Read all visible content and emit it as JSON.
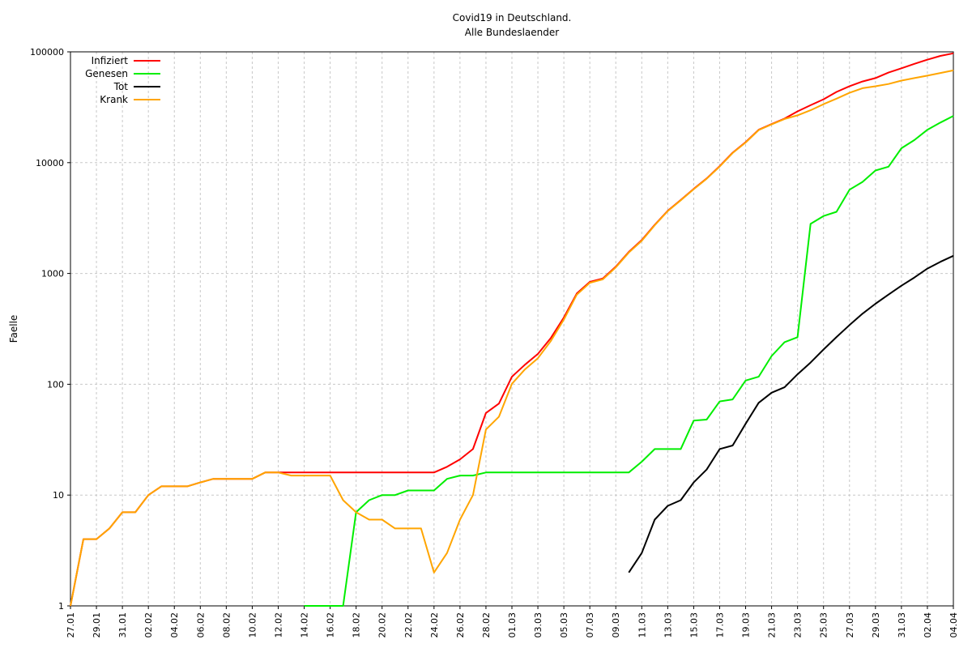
{
  "chart_data": {
    "type": "line",
    "title": "Covid19 in Deutschland.",
    "subtitle": "Alle Bundeslaender",
    "ylabel": "Faelle",
    "xlabel": "",
    "yscale": "log",
    "ylim": [
      1,
      100000
    ],
    "y_ticks": [
      "1",
      "10",
      "100",
      "1000",
      "10000",
      "100000"
    ],
    "grid": true,
    "legend_position": "top-left",
    "x_ticks": [
      "27.01",
      "29.01",
      "31.01",
      "02.02",
      "04.02",
      "06.02",
      "08.02",
      "10.02",
      "12.02",
      "14.02",
      "16.02",
      "18.02",
      "20.02",
      "22.02",
      "24.02",
      "26.02",
      "28.02",
      "01.03",
      "03.03",
      "05.03",
      "07.03",
      "09.03",
      "11.03",
      "13.03",
      "15.03",
      "17.03",
      "19.03",
      "21.03",
      "23.03",
      "25.03",
      "27.03",
      "29.03",
      "31.03",
      "02.04",
      "04.04"
    ],
    "x": [
      "27.01",
      "28.01",
      "29.01",
      "30.01",
      "31.01",
      "01.02",
      "02.02",
      "03.02",
      "04.02",
      "05.02",
      "06.02",
      "07.02",
      "08.02",
      "09.02",
      "10.02",
      "11.02",
      "12.02",
      "13.02",
      "14.02",
      "15.02",
      "16.02",
      "17.02",
      "18.02",
      "19.02",
      "20.02",
      "21.02",
      "22.02",
      "23.02",
      "24.02",
      "25.02",
      "26.02",
      "27.02",
      "28.02",
      "29.02",
      "01.03",
      "02.03",
      "03.03",
      "04.03",
      "05.03",
      "06.03",
      "07.03",
      "08.03",
      "09.03",
      "10.03",
      "11.03",
      "12.03",
      "13.03",
      "14.03",
      "15.03",
      "16.03",
      "17.03",
      "18.03",
      "19.03",
      "20.03",
      "21.03",
      "22.03",
      "23.03",
      "24.03",
      "25.03",
      "26.03",
      "27.03",
      "28.03",
      "29.03",
      "30.03",
      "31.03",
      "01.04",
      "02.04",
      "03.04",
      "04.04"
    ],
    "series": [
      {
        "name": "Infiziert",
        "color": "#ff0000",
        "values": [
          1,
          4,
          4,
          5,
          7,
          7,
          10,
          12,
          12,
          12,
          13,
          14,
          14,
          14,
          14,
          16,
          16,
          16,
          16,
          16,
          16,
          16,
          16,
          16,
          16,
          16,
          16,
          16,
          16,
          18,
          21,
          26,
          55,
          67,
          117,
          150,
          188,
          262,
          400,
          660,
          840,
          900,
          1150,
          1565,
          2000,
          2750,
          3680,
          4600,
          5800,
          7200,
          9300,
          12300,
          15300,
          19800,
          22300,
          25000,
          29000,
          33000,
          37300,
          43500,
          49000,
          54000,
          58000,
          65000,
          71000,
          78000,
          85000,
          92000,
          97000
        ]
      },
      {
        "name": "Genesen",
        "color": "#00ee00",
        "values": [
          null,
          null,
          null,
          null,
          null,
          null,
          null,
          null,
          null,
          null,
          null,
          null,
          null,
          null,
          null,
          null,
          null,
          null,
          1,
          1,
          1,
          1,
          7,
          9,
          10,
          10,
          11,
          11,
          11,
          14,
          15,
          15,
          16,
          16,
          16,
          16,
          16,
          16,
          16,
          16,
          16,
          16,
          16,
          16,
          20,
          26,
          26,
          26,
          47,
          48,
          70,
          73,
          108,
          117,
          180,
          240,
          266,
          2800,
          3300,
          3600,
          5700,
          6700,
          8500,
          9200,
          13500,
          16000,
          19800,
          23000,
          26400
        ]
      },
      {
        "name": "Tot",
        "color": "#000000",
        "values": [
          null,
          null,
          null,
          null,
          null,
          null,
          null,
          null,
          null,
          null,
          null,
          null,
          null,
          null,
          null,
          null,
          null,
          null,
          null,
          null,
          null,
          null,
          null,
          null,
          null,
          null,
          null,
          null,
          null,
          null,
          null,
          null,
          null,
          null,
          null,
          null,
          null,
          null,
          null,
          null,
          null,
          null,
          null,
          2,
          3,
          6,
          8,
          9,
          13,
          17,
          26,
          28,
          44,
          68,
          84,
          94,
          123,
          157,
          206,
          267,
          342,
          433,
          533,
          645,
          775,
          920,
          1107,
          1275,
          1444
        ]
      },
      {
        "name": "Krank",
        "color": "#ffa500",
        "values": [
          1,
          4,
          4,
          5,
          7,
          7,
          10,
          12,
          12,
          12,
          13,
          14,
          14,
          14,
          14,
          16,
          16,
          15,
          15,
          15,
          15,
          9,
          7,
          6,
          6,
          5,
          5,
          5,
          2,
          3,
          6,
          10,
          39,
          51,
          101,
          136,
          172,
          246,
          384,
          644,
          824,
          884,
          1134,
          1545,
          1974,
          2724,
          3654,
          4574,
          5753,
          7152,
          9230,
          12227,
          15192,
          19683,
          22120,
          24760,
          26734,
          29700,
          33700,
          37800,
          42700,
          47000,
          48900,
          51300,
          55000,
          58000,
          61000,
          64500,
          68000
        ]
      }
    ]
  }
}
